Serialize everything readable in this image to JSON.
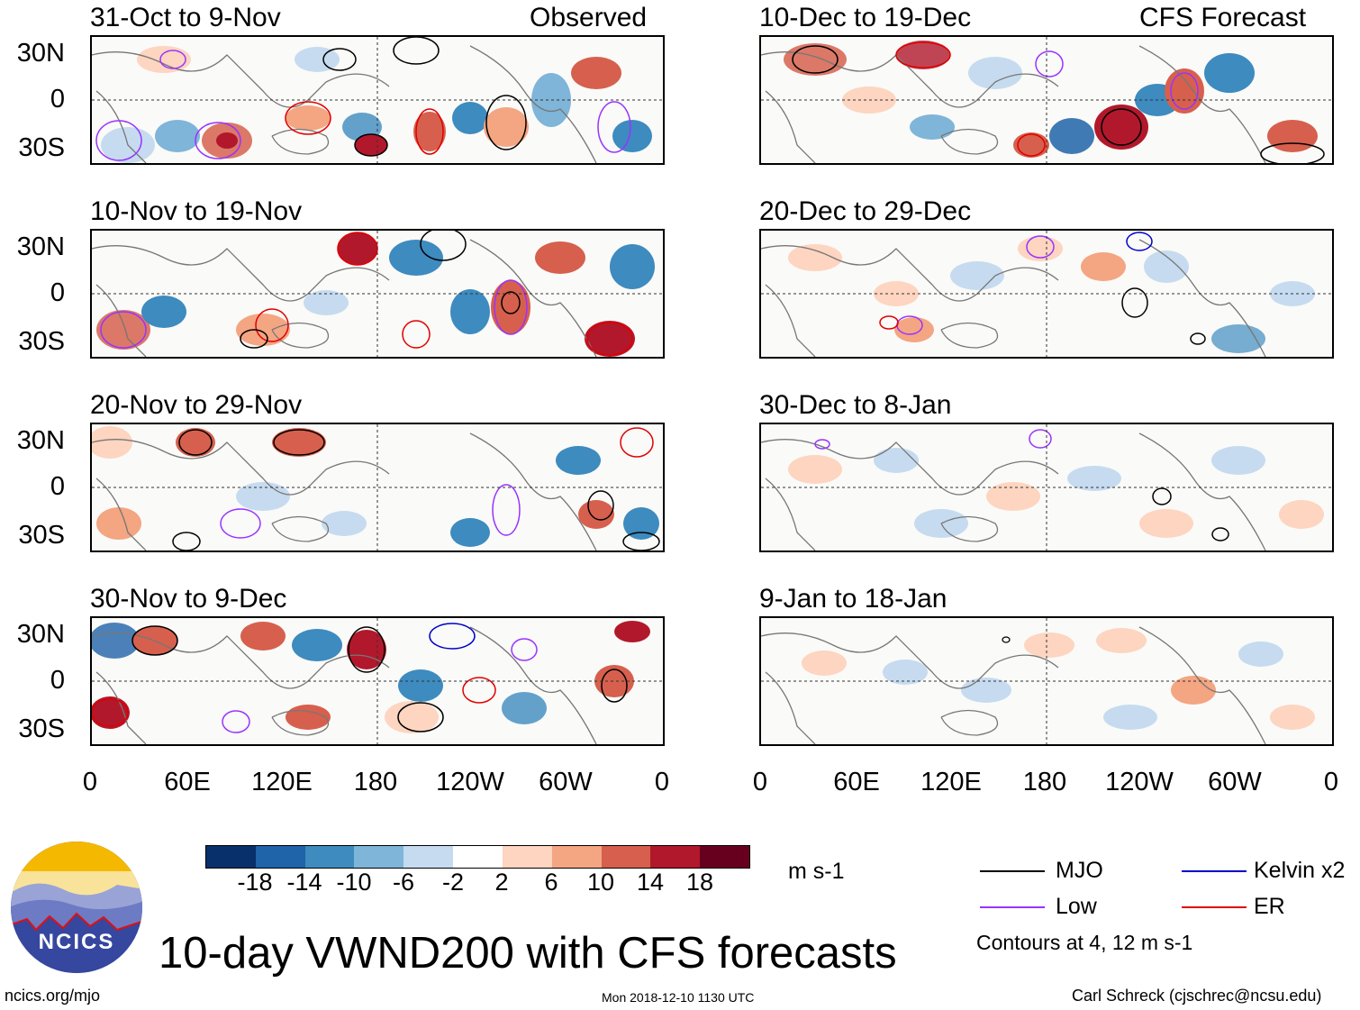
{
  "header": {
    "left_tag": "Observed",
    "right_tag": "CFS Forecast"
  },
  "panels": [
    {
      "date_range": "31-Oct to 9-Nov",
      "kind": "observed"
    },
    {
      "date_range": "10-Nov to 19-Nov",
      "kind": "observed"
    },
    {
      "date_range": "20-Nov to 29-Nov",
      "kind": "observed"
    },
    {
      "date_range": "30-Nov to 9-Dec",
      "kind": "observed"
    },
    {
      "date_range": "10-Dec to 19-Dec",
      "kind": "forecast"
    },
    {
      "date_range": "20-Dec to 29-Dec",
      "kind": "forecast"
    },
    {
      "date_range": "30-Dec to 8-Jan",
      "kind": "forecast"
    },
    {
      "date_range": "9-Jan to 18-Jan",
      "kind": "forecast"
    }
  ],
  "lat_labels": [
    "30N",
    "0",
    "30S"
  ],
  "lon_labels": [
    "0",
    "60E",
    "120E",
    "180",
    "120W",
    "60W",
    "0"
  ],
  "colorbar": {
    "ticks": [
      "-18",
      "-14",
      "-10",
      "-6",
      "-2",
      "2",
      "6",
      "10",
      "14",
      "18"
    ],
    "colors": [
      "#08306b",
      "#1f63a8",
      "#3d8bbf",
      "#7fb5d8",
      "#c6dbef",
      "#ffffff",
      "#fdd5c0",
      "#f4a582",
      "#d6604d",
      "#b2182b",
      "#67001f"
    ],
    "unit": "m s-1"
  },
  "legend": {
    "items": [
      {
        "label": "MJO",
        "color": "#000000"
      },
      {
        "label": "Kelvin x2",
        "color": "#0000cc"
      },
      {
        "label": "Low",
        "color": "#9933ff"
      },
      {
        "label": "ER",
        "color": "#e00000"
      }
    ],
    "note": "Contours at 4, 12 m s-1"
  },
  "title": "10-day VWND200 with CFS forecasts",
  "logo_text": "NCICS",
  "footer": {
    "url": "ncics.org/mjo",
    "timestamp": "Mon 2018-12-10 1130 UTC",
    "credit": "Carl Schreck (cjschrec@ncsu.edu)"
  }
}
